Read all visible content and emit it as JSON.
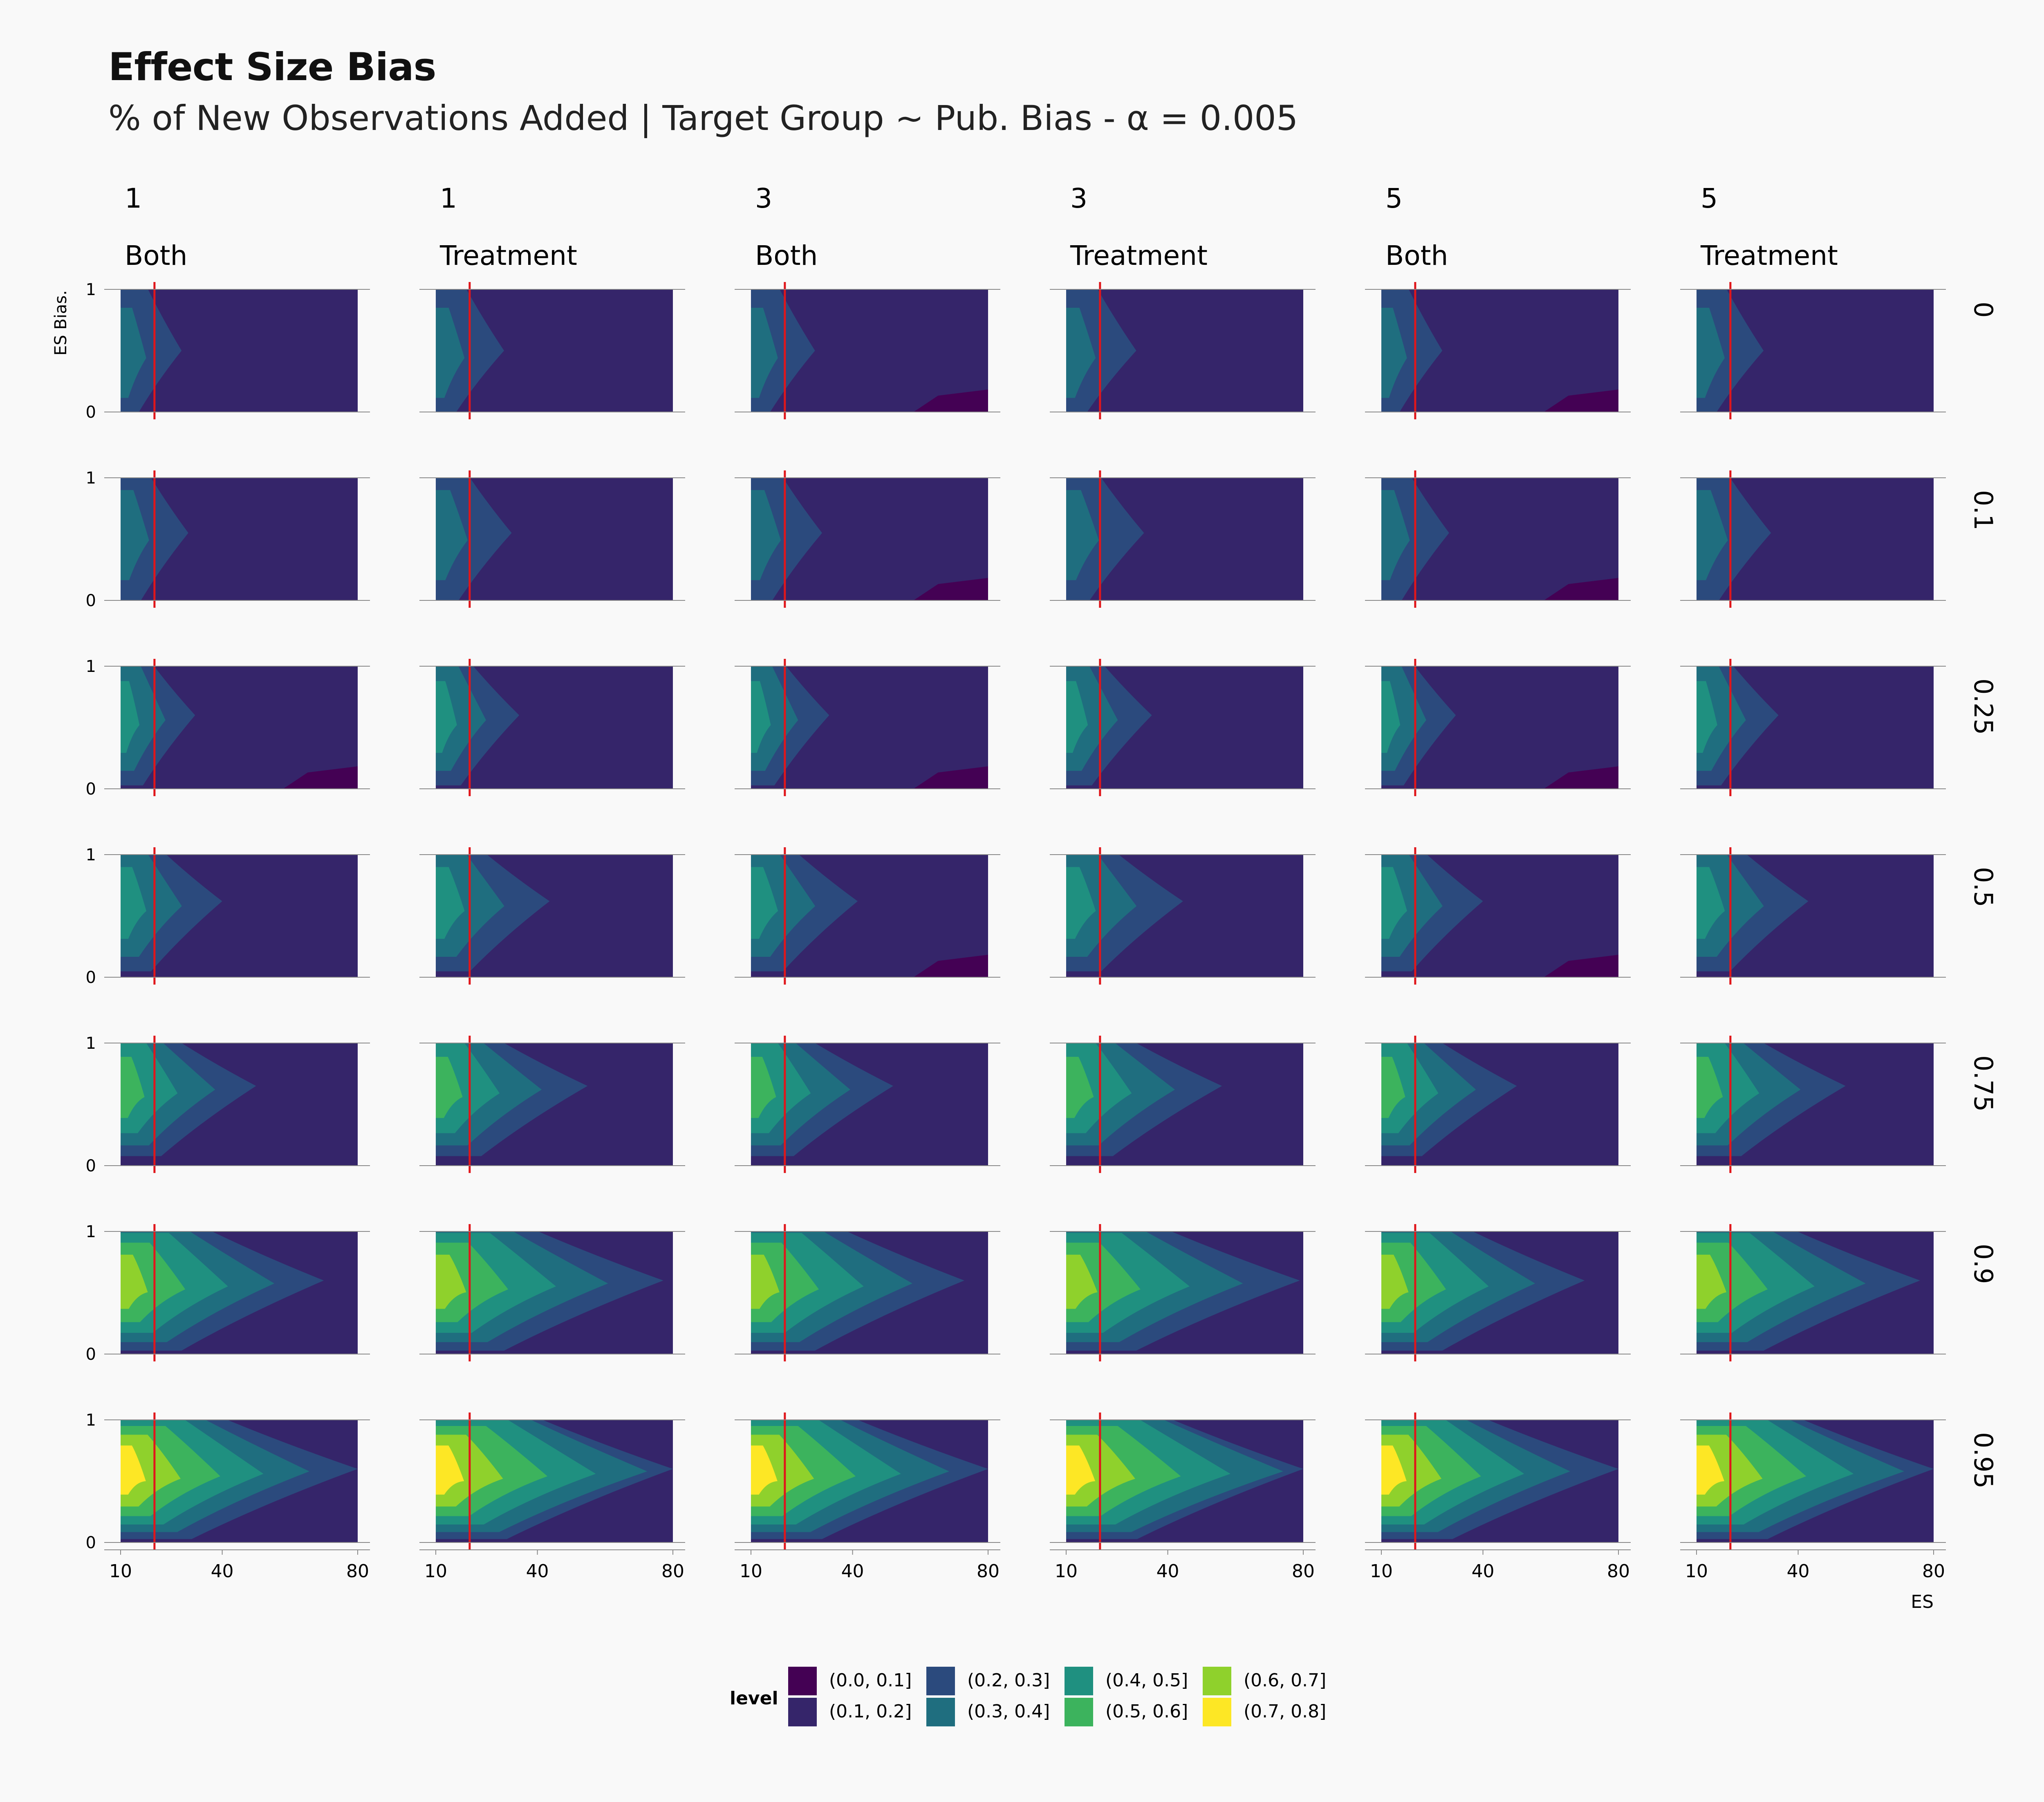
{
  "title": "Effect Size Bias",
  "subtitle": "% of New Observations Added | Target Group ~ Pub. Bias - α = 0.005",
  "chart_data": {
    "type": "heatmap",
    "subtype": "faceted filled contour",
    "col_facets": [
      {
        "top": "1",
        "bottom": "Both"
      },
      {
        "top": "1",
        "bottom": "Treatment"
      },
      {
        "top": "3",
        "bottom": "Both"
      },
      {
        "top": "3",
        "bottom": "Treatment"
      },
      {
        "top": "5",
        "bottom": "Both"
      },
      {
        "top": "5",
        "bottom": "Treatment"
      }
    ],
    "row_facets": [
      "0",
      "0.1",
      "0.25",
      "0.5",
      "0.75",
      "0.9",
      "0.95"
    ],
    "xlabel": "ES",
    "ylabel": "ES Bias.",
    "x_ticks": [
      "10",
      "40",
      "80"
    ],
    "x_tick_values": [
      10,
      40,
      80
    ],
    "xlim": [
      10,
      80
    ],
    "y_ticks": [
      "0",
      "1"
    ],
    "y_tick_values": [
      0,
      1
    ],
    "ylim": [
      0,
      1
    ],
    "reference_line": {
      "x": 20,
      "color": "#e0161b"
    },
    "legend": {
      "title": "level",
      "position": "bottom",
      "levels": [
        {
          "label": "(0.0, 0.1]",
          "color": "#440154"
        },
        {
          "label": "(0.1, 0.2]",
          "color": "#35256a"
        },
        {
          "label": "(0.2, 0.3]",
          "color": "#2b4a7d"
        },
        {
          "label": "(0.3, 0.4]",
          "color": "#1f6e7f"
        },
        {
          "label": "(0.4, 0.5]",
          "color": "#1f9080"
        },
        {
          "label": "(0.5, 0.6]",
          "color": "#3cb35d"
        },
        {
          "label": "(0.6, 0.7]",
          "color": "#8fd12c"
        },
        {
          "label": "(0.7, 0.8]",
          "color": "#fde725"
        }
      ]
    },
    "rows_profile": [
      {
        "row": "0",
        "max_level": 3,
        "peak_y": 0.5,
        "reach_es": 28,
        "low_corner": true
      },
      {
        "row": "0.1",
        "max_level": 3,
        "peak_y": 0.55,
        "reach_es": 30,
        "low_corner": true
      },
      {
        "row": "0.25",
        "max_level": 4,
        "peak_y": 0.6,
        "reach_es": 32,
        "low_corner": true
      },
      {
        "row": "0.5",
        "max_level": 4,
        "peak_y": 0.62,
        "reach_es": 40,
        "low_corner": true
      },
      {
        "row": "0.75",
        "max_level": 5,
        "peak_y": 0.65,
        "reach_es": 50,
        "low_corner": false
      },
      {
        "row": "0.9",
        "max_level": 6,
        "peak_y": 0.6,
        "reach_es": 70,
        "low_corner": false
      },
      {
        "row": "0.95",
        "max_level": 7,
        "peak_y": 0.6,
        "reach_es": 80,
        "low_corner": false
      }
    ]
  }
}
